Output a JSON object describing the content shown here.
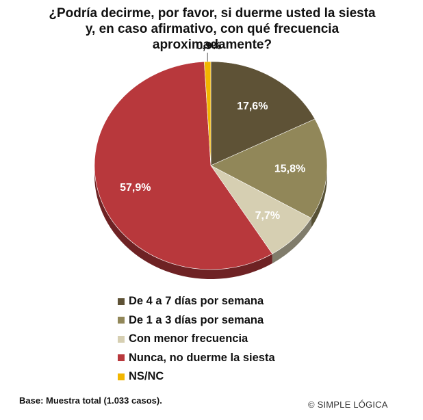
{
  "title": {
    "lines": [
      "¿Podría decirme, por favor, si duerme usted la siesta",
      "y, en caso afirmativo, con qué frecuencia",
      "aproximadamente?"
    ]
  },
  "chart_data": {
    "type": "pie",
    "title": "¿Podría decirme, por favor, si duerme usted la siesta y, en caso afirmativo, con qué frecuencia aproximadamente?",
    "style": "3d",
    "legend_position": "bottom",
    "slices": [
      {
        "name": "De 4 a 7 días por semana",
        "value": 17.6,
        "label": "17,6%",
        "color": "#5e5236"
      },
      {
        "name": "De 1 a 3 días por semana",
        "value": 15.8,
        "label": "15,8%",
        "color": "#918759"
      },
      {
        "name": "Con menor frecuencia",
        "value": 7.7,
        "label": "7,7%",
        "color": "#d6cfb2"
      },
      {
        "name": "Nunca, no duerme la siesta",
        "value": 57.9,
        "label": "57,9%",
        "color": "#b8383c"
      },
      {
        "name": "NS/NC",
        "value": 0.9,
        "label": "0,9%",
        "color": "#f2b600"
      }
    ]
  },
  "footer": {
    "base": "Base: Muestra total (1.033 casos).",
    "credit": "© SIMPLE LÓGICA"
  }
}
